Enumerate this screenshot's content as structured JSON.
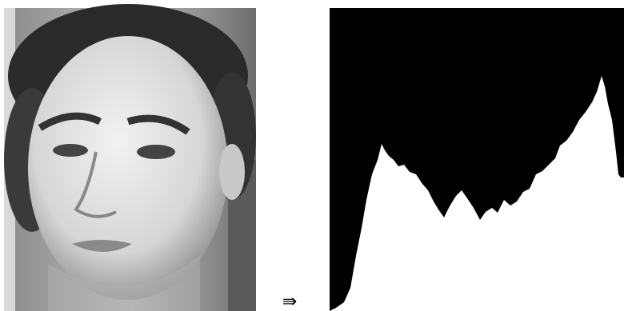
{
  "arrow": "⇛"
}
